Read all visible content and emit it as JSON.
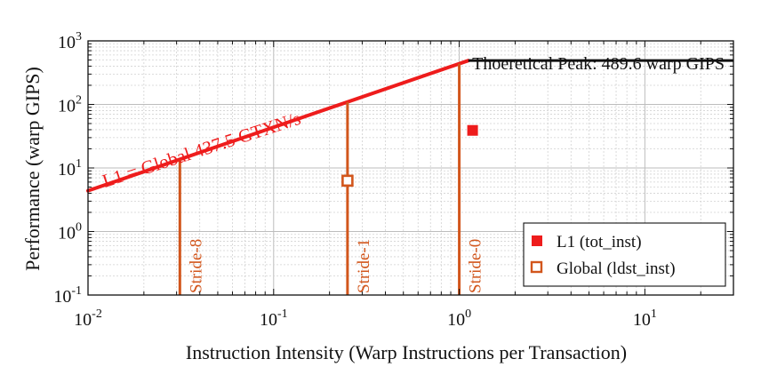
{
  "chart_data": {
    "type": "line",
    "xlabel": "Instruction Intensity (Warp Instructions per Transaction)",
    "ylabel": "Performance (warp GIPS)",
    "x_scale": "log",
    "y_scale": "log",
    "xlim": [
      0.01,
      30
    ],
    "ylim": [
      0.1,
      1000
    ],
    "x_tick_labels": [
      {
        "base": "10",
        "exp": "-2",
        "value": 0.01
      },
      {
        "base": "10",
        "exp": "-1",
        "value": 0.1
      },
      {
        "base": "10",
        "exp": "0",
        "value": 1
      },
      {
        "base": "10",
        "exp": "1",
        "value": 10
      }
    ],
    "y_tick_labels": [
      {
        "base": "10",
        "exp": "-1",
        "value": 0.1
      },
      {
        "base": "10",
        "exp": "0",
        "value": 1
      },
      {
        "base": "10",
        "exp": "1",
        "value": 10
      },
      {
        "base": "10",
        "exp": "2",
        "value": 100
      },
      {
        "base": "10",
        "exp": "3",
        "value": 1000
      }
    ],
    "grid": true,
    "roofline": {
      "bandwidth_label": "L1 = Global 437.5 GTXN/s",
      "bandwidth": 437.5,
      "peak_label": "Thoeretical Peak: 489.6 warp GIPS",
      "peak": 489.6,
      "color": "#ee1c1c",
      "peak_color": "#111111"
    },
    "strides": [
      {
        "label": "Stride-8",
        "x": 0.03125
      },
      {
        "label": "Stride-1",
        "x": 0.25
      },
      {
        "label": "Stride-0",
        "x": 1.0
      }
    ],
    "stride_color": "#d2561c",
    "series": [
      {
        "name": "L1 (tot_inst)",
        "marker": "square-filled",
        "color": "#ee1c1c",
        "points": [
          {
            "x": 1.18,
            "y": 39
          }
        ]
      },
      {
        "name": "Global (ldst_inst)",
        "marker": "square-open",
        "color": "#d2561c",
        "points": [
          {
            "x": 0.25,
            "y": 6.3
          }
        ]
      }
    ],
    "legend_position": "bottom-right"
  }
}
